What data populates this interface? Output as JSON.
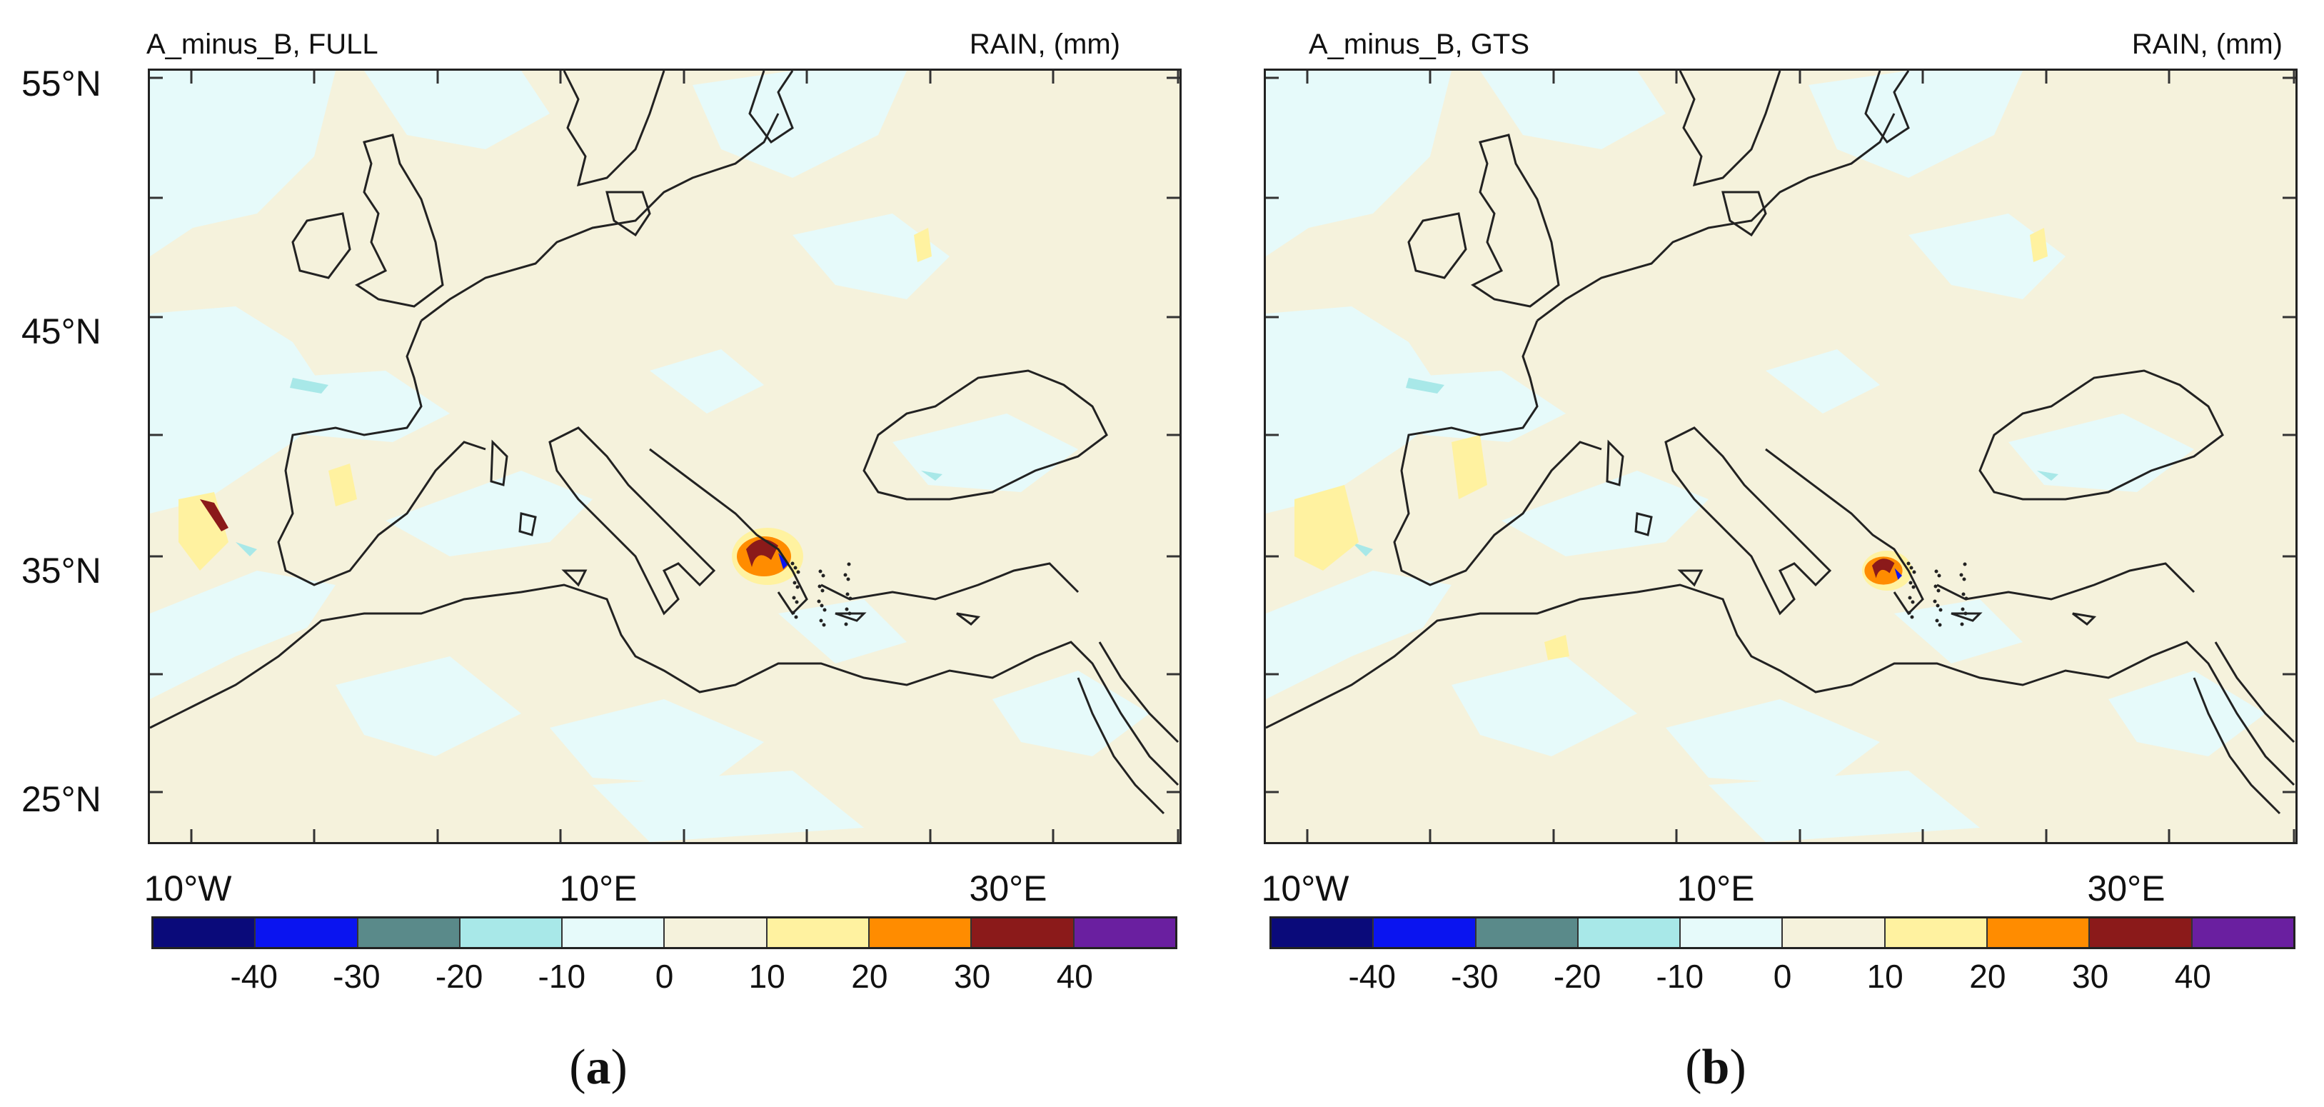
{
  "panels": [
    {
      "title_left": "A_minus_B, FULL",
      "title_right": "RAIN, (mm)",
      "sub_label": {
        "open": "(",
        "letter": "a",
        "close": ")"
      }
    },
    {
      "title_left": "A_minus_B, GTS",
      "title_right": "RAIN, (mm)",
      "sub_label": {
        "open": "(",
        "letter": "b",
        "close": ")"
      }
    }
  ],
  "lat_labels": [
    "55°N",
    "45°N",
    "35°N",
    "25°N"
  ],
  "lon_labels": [
    "10°W",
    "10°E",
    "30°E"
  ],
  "colorbar": {
    "colors": [
      "#0a0a7a",
      "#0a14f0",
      "#5a8a8a",
      "#a8e8e8",
      "#e6fafa",
      "#f5f2dc",
      "#fff2a0",
      "#ff8c00",
      "#8b1a1a",
      "#6a1fa0"
    ],
    "labels": [
      "-40",
      "-30",
      "-20",
      "-10",
      "0",
      "10",
      "20",
      "30",
      "40"
    ]
  },
  "map_colors": {
    "background": "#f5f2dc",
    "light_blue": "#e6fafa",
    "cyan": "#a8e8e8",
    "yellow": "#fff2a0",
    "orange": "#ff8c00",
    "dark_red": "#8b1a1a",
    "blue": "#0a14f0",
    "coast": "#222222",
    "border": "#555555"
  }
}
